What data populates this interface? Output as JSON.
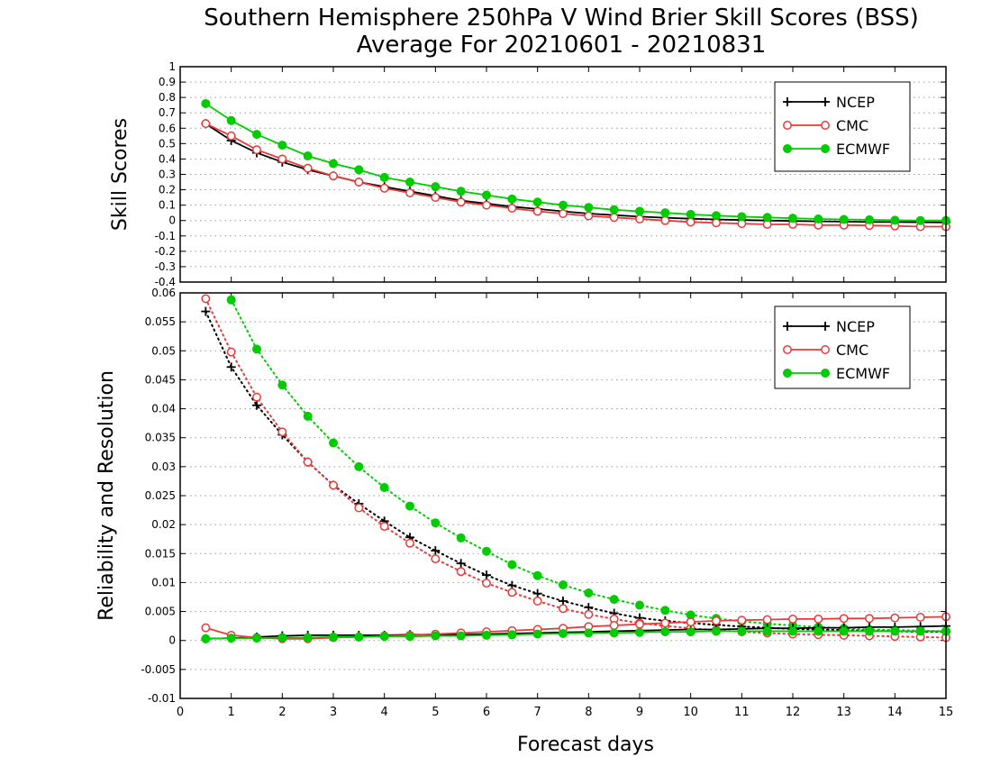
{
  "title_line1": "Southern Hemisphere 250hPa V Wind Brier Skill Scores (BSS)",
  "title_line2": "Average For 20210601 - 20210831",
  "colors": {
    "NCEP": "#000000",
    "CMC": "#e83a3a",
    "ECMWF": "#00cc00"
  },
  "chart_data": [
    {
      "type": "line",
      "ylabel": "Skill Scores",
      "ylim": [
        -0.4,
        1
      ],
      "yticks": [
        -0.4,
        -0.3,
        -0.2,
        -0.1,
        0,
        0.1,
        0.2,
        0.3,
        0.4,
        0.5,
        0.6,
        0.7,
        0.8,
        0.9,
        1
      ],
      "ytick_labels": [
        "-0.4",
        "-0.3",
        "-0.2",
        "-0.1",
        "0",
        "0.1",
        "0.2",
        "0.3",
        "0.4",
        "0.5",
        "0.6",
        "0.7",
        "0.8",
        "0.9",
        "1"
      ],
      "xlim": [
        0,
        15
      ],
      "grid": true,
      "legend_position": "top-right",
      "series": [
        {
          "name": "NCEP",
          "marker": "plus",
          "style": "solid",
          "x": [
            0.5,
            1,
            1.5,
            2,
            2.5,
            3,
            3.5,
            4,
            4.5,
            5,
            5.5,
            6,
            6.5,
            7,
            7.5,
            8,
            8.5,
            9,
            9.5,
            10,
            10.5,
            11,
            11.5,
            12,
            12.5,
            13,
            13.5,
            14,
            14.5,
            15
          ],
          "y": [
            0.63,
            0.52,
            0.44,
            0.38,
            0.33,
            0.29,
            0.25,
            0.22,
            0.19,
            0.16,
            0.13,
            0.11,
            0.09,
            0.075,
            0.06,
            0.045,
            0.035,
            0.025,
            0.018,
            0.012,
            0.007,
            0.003,
            0.0,
            -0.003,
            -0.005,
            -0.007,
            -0.009,
            -0.01,
            -0.011,
            -0.012
          ]
        },
        {
          "name": "CMC",
          "marker": "circle-open",
          "style": "solid",
          "x": [
            0.5,
            1,
            1.5,
            2,
            2.5,
            3,
            3.5,
            4,
            4.5,
            5,
            5.5,
            6,
            6.5,
            7,
            7.5,
            8,
            8.5,
            9,
            9.5,
            10,
            10.5,
            11,
            11.5,
            12,
            12.5,
            13,
            13.5,
            14,
            14.5,
            15
          ],
          "y": [
            0.63,
            0.55,
            0.46,
            0.4,
            0.34,
            0.29,
            0.25,
            0.21,
            0.18,
            0.15,
            0.12,
            0.1,
            0.08,
            0.06,
            0.045,
            0.03,
            0.02,
            0.01,
            0.0,
            -0.01,
            -0.015,
            -0.02,
            -0.025,
            -0.025,
            -0.03,
            -0.03,
            -0.032,
            -0.035,
            -0.04,
            -0.04
          ]
        },
        {
          "name": "ECMWF",
          "marker": "circle-filled",
          "style": "solid",
          "x": [
            0.5,
            1,
            1.5,
            2,
            2.5,
            3,
            3.5,
            4,
            4.5,
            5,
            5.5,
            6,
            6.5,
            7,
            7.5,
            8,
            8.5,
            9,
            9.5,
            10,
            10.5,
            11,
            11.5,
            12,
            12.5,
            13,
            13.5,
            14,
            14.5,
            15
          ],
          "y": [
            0.76,
            0.65,
            0.56,
            0.49,
            0.42,
            0.37,
            0.33,
            0.28,
            0.25,
            0.22,
            0.19,
            0.165,
            0.14,
            0.12,
            0.1,
            0.085,
            0.07,
            0.06,
            0.05,
            0.04,
            0.032,
            0.025,
            0.02,
            0.015,
            0.01,
            0.007,
            0.005,
            0.002,
            0.0,
            0.0
          ]
        }
      ]
    },
    {
      "type": "line",
      "ylabel": "Reliability and Resolution",
      "xlabel": "Forecast days",
      "ylim": [
        -0.01,
        0.06
      ],
      "yticks": [
        -0.01,
        -0.005,
        0,
        0.005,
        0.01,
        0.015,
        0.02,
        0.025,
        0.03,
        0.035,
        0.04,
        0.045,
        0.05,
        0.055,
        0.06
      ],
      "ytick_labels": [
        "-0.01",
        "-0.005",
        "0",
        "0.005",
        "0.01",
        "0.015",
        "0.02",
        "0.025",
        "0.03",
        "0.035",
        "0.04",
        "0.045",
        "0.05",
        "0.055",
        "0.06"
      ],
      "xlim": [
        0,
        15
      ],
      "xticks": [
        0,
        1,
        2,
        3,
        4,
        5,
        6,
        7,
        8,
        9,
        10,
        11,
        12,
        13,
        14,
        15
      ],
      "xtick_labels": [
        "0",
        "1",
        "2",
        "3",
        "4",
        "5",
        "6",
        "7",
        "8",
        "9",
        "10",
        "11",
        "12",
        "13",
        "14",
        "15"
      ],
      "grid": true,
      "legend_position": "top-right",
      "legend": [
        "NCEP",
        "CMC",
        "ECMWF"
      ],
      "series": [
        {
          "name": "NCEP",
          "role": "resolution",
          "marker": "plus",
          "style": "dotted",
          "x": [
            0.5,
            1,
            1.5,
            2,
            2.5,
            3,
            3.5,
            4,
            4.5,
            5,
            5.5,
            6,
            6.5,
            7,
            7.5,
            8,
            8.5,
            9,
            9.5,
            10,
            10.5,
            11,
            11.5,
            12,
            12.5,
            13,
            13.5,
            14,
            14.5,
            15
          ],
          "y": [
            0.0568,
            0.0472,
            0.0406,
            0.0355,
            0.0308,
            0.0268,
            0.0236,
            0.0206,
            0.0178,
            0.0155,
            0.0133,
            0.0113,
            0.0095,
            0.0081,
            0.0068,
            0.0057,
            0.0047,
            0.0039,
            0.0034,
            0.003,
            0.0027,
            0.0024,
            0.0022,
            0.002,
            0.0019,
            0.0018,
            0.0017,
            0.0016,
            0.0015,
            0.0015
          ]
        },
        {
          "name": "CMC",
          "role": "resolution",
          "marker": "circle-open",
          "style": "dotted",
          "x": [
            0.5,
            1,
            1.5,
            2,
            2.5,
            3,
            3.5,
            4,
            4.5,
            5,
            5.5,
            6,
            6.5,
            7,
            7.5,
            8,
            8.5,
            9,
            9.5,
            10,
            10.5,
            11,
            11.5,
            12,
            12.5,
            13,
            13.5,
            14,
            14.5,
            15
          ],
          "y": [
            0.059,
            0.0498,
            0.042,
            0.036,
            0.0308,
            0.0268,
            0.0229,
            0.0197,
            0.0168,
            0.0141,
            0.0119,
            0.0099,
            0.0083,
            0.0068,
            0.0055,
            0.0045,
            0.0037,
            0.003,
            0.0025,
            0.0021,
            0.0018,
            0.0015,
            0.0013,
            0.0011,
            0.001,
            0.0009,
            0.0008,
            0.0007,
            0.0006,
            0.0005
          ]
        },
        {
          "name": "ECMWF",
          "role": "resolution",
          "marker": "circle-filled",
          "style": "dotted",
          "x": [
            1,
            1.5,
            2,
            2.5,
            3,
            3.5,
            4,
            4.5,
            5,
            5.5,
            6,
            6.5,
            7,
            7.5,
            8,
            8.5,
            9,
            9.5,
            10,
            10.5,
            11,
            11.5,
            12,
            12.5,
            13,
            13.5,
            14,
            14.5,
            15
          ],
          "y": [
            0.0588,
            0.0503,
            0.0441,
            0.0387,
            0.0341,
            0.03,
            0.0264,
            0.0232,
            0.0203,
            0.0177,
            0.0154,
            0.0131,
            0.0112,
            0.0096,
            0.0082,
            0.0071,
            0.0061,
            0.0052,
            0.0044,
            0.0038,
            0.0033,
            0.0029,
            0.0026,
            0.0023,
            0.0021,
            0.0019,
            0.0018,
            0.0017,
            0.0016
          ]
        },
        {
          "name": "NCEP",
          "role": "reliability",
          "marker": "plus",
          "style": "solid",
          "x": [
            0.5,
            1,
            1.5,
            2,
            2.5,
            3,
            3.5,
            4,
            4.5,
            5,
            5.5,
            6,
            6.5,
            7,
            7.5,
            8,
            8.5,
            9,
            9.5,
            10,
            10.5,
            11,
            11.5,
            12,
            12.5,
            13,
            13.5,
            14,
            14.5,
            15
          ],
          "y": [
            0.0003,
            0.0004,
            0.0006,
            0.0008,
            0.0009,
            0.0009,
            0.0009,
            0.0009,
            0.001,
            0.001,
            0.001,
            0.0011,
            0.0012,
            0.0013,
            0.0014,
            0.0015,
            0.0016,
            0.0017,
            0.0018,
            0.0019,
            0.0019,
            0.002,
            0.0021,
            0.0021,
            0.0022,
            0.0022,
            0.0023,
            0.0023,
            0.0024,
            0.0025
          ]
        },
        {
          "name": "CMC",
          "role": "reliability",
          "marker": "circle-open",
          "style": "solid",
          "x": [
            0.5,
            1,
            1.5,
            2,
            2.5,
            3,
            3.5,
            4,
            4.5,
            5,
            5.5,
            6,
            6.5,
            7,
            7.5,
            8,
            8.5,
            9,
            9.5,
            10,
            10.5,
            11,
            11.5,
            12,
            12.5,
            13,
            13.5,
            14,
            14.5,
            15
          ],
          "y": [
            0.0022,
            0.0009,
            0.0005,
            0.0003,
            0.0003,
            0.0005,
            0.0006,
            0.0008,
            0.0009,
            0.0011,
            0.0013,
            0.0015,
            0.0017,
            0.0019,
            0.0021,
            0.0024,
            0.0026,
            0.0028,
            0.003,
            0.0032,
            0.0034,
            0.0035,
            0.0036,
            0.0037,
            0.0037,
            0.0038,
            0.0038,
            0.0039,
            0.004,
            0.0041
          ]
        },
        {
          "name": "ECMWF",
          "role": "reliability",
          "marker": "circle-filled",
          "style": "solid",
          "x": [
            0.5,
            1,
            1.5,
            2,
            2.5,
            3,
            3.5,
            4,
            4.5,
            5,
            5.5,
            6,
            6.5,
            7,
            7.5,
            8,
            8.5,
            9,
            9.5,
            10,
            10.5,
            11,
            11.5,
            12,
            12.5,
            13,
            13.5,
            14,
            14.5,
            15
          ],
          "y": [
            0.0003,
            0.0004,
            0.0004,
            0.0005,
            0.0005,
            0.0006,
            0.0006,
            0.0007,
            0.0007,
            0.0008,
            0.0008,
            0.0009,
            0.001,
            0.0011,
            0.0012,
            0.0013,
            0.0013,
            0.0014,
            0.0015,
            0.0015,
            0.0016,
            0.0016,
            0.0016,
            0.0016,
            0.0016,
            0.0016,
            0.0016,
            0.0016,
            0.0016,
            0.0016
          ]
        }
      ]
    }
  ]
}
